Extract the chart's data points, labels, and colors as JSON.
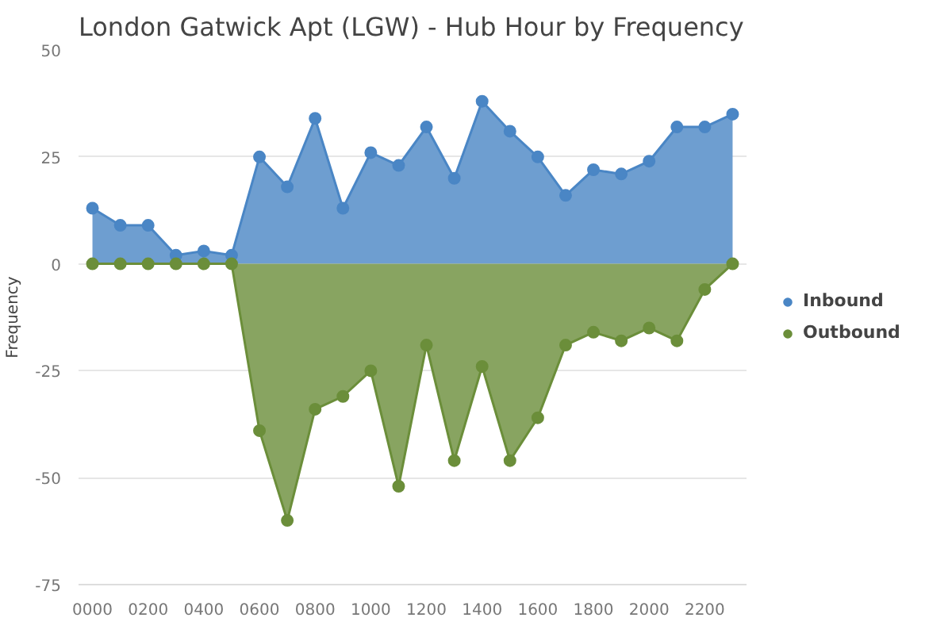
{
  "chart_data": {
    "type": "area",
    "title": "London Gatwick Apt (LGW) - Hub Hour by Frequency",
    "ylabel": "Frequency",
    "categories": [
      "0000",
      null,
      "0200",
      null,
      "0400",
      null,
      "0600",
      null,
      "0800",
      null,
      "1000",
      null,
      "1200",
      null,
      "1400",
      null,
      "1600",
      null,
      "1800",
      null,
      "2000",
      null,
      "2200",
      null
    ],
    "series": [
      {
        "name": "Inbound",
        "color": "#4a86c5",
        "values": [
          13,
          9,
          9,
          2,
          3,
          2,
          25,
          18,
          34,
          13,
          26,
          23,
          32,
          20,
          38,
          31,
          25,
          16,
          22,
          21,
          24,
          32,
          32,
          35
        ]
      },
      {
        "name": "Outbound",
        "color": "#6b8e3a",
        "values": [
          0,
          0,
          0,
          0,
          0,
          0,
          -39,
          -60,
          -34,
          -31,
          -25,
          -52,
          -19,
          -46,
          -24,
          -46,
          -36,
          -19,
          -16,
          -18,
          -15,
          -18,
          -6,
          0
        ]
      }
    ],
    "ylim": [
      -75,
      50
    ],
    "yticks": [
      -75,
      -50,
      -25,
      0,
      25,
      50
    ],
    "grid": "y",
    "legend": "right",
    "marker": "circle"
  }
}
